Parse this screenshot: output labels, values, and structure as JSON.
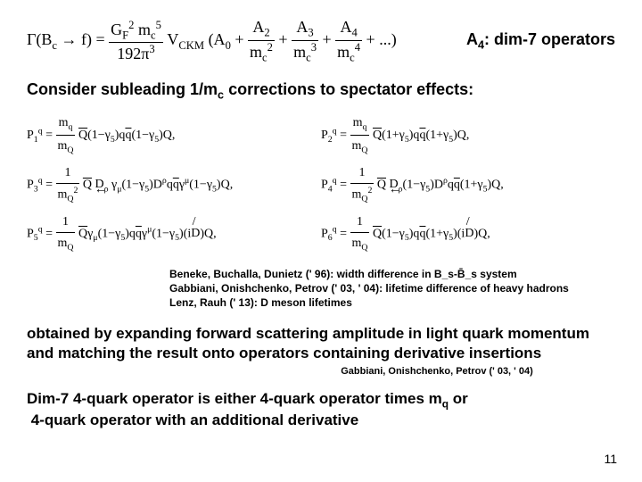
{
  "mainEquation": {
    "lhs": "Γ(B_c → f) =",
    "prefactorNum": "G_F² m_c⁵",
    "prefactorDen": "192π³",
    "ckm": "V_CKM",
    "series": "(A₀ + A₂/m_c² + A₃/m_c³ + A₄/m_c⁴ + ...)"
  },
  "headingRight": "A₄: dim-7 operators",
  "subHeading": "Consider subleading 1/m_c corrections to spectator effects:",
  "operators": {
    "row1": {
      "left": "P₁^q = (m_q/m_Q) Q̄(1−γ₅)q q̄(1−γ₅)Q,",
      "right": "P₂^q = (m_q/m_Q) Q̄(1+γ₅)q q̄(1+γ₅)Q,"
    },
    "row2": {
      "left": "P₃^q = (1/m_Q²) Q̄ D_ρ γ_μ(1−γ₅)D^ρ q q̄ γ^μ(1−γ₅)Q,",
      "right": "P₄^q = (1/m_Q²) Q̄ D_ρ(1−γ₅)D^ρ q q̄(1+γ₅)Q,"
    },
    "row3": {
      "left": "P₅^q = (1/m_Q) Q̄ γ_μ(1−γ₅)q q̄ γ^μ(1−γ₅)(iD̸)Q,",
      "right": "P₆^q = (1/m_Q) Q̄(1−γ₅)q q̄(1+γ₅)(iD̸)Q,"
    }
  },
  "refs": {
    "line1": "Beneke, Buchalla, Dunietz (' 96): width difference in B_s-B̄_s system",
    "line2": "Gabbiani, Onishchenko, Petrov (' 03, ' 04): lifetime difference of heavy hadrons",
    "line3": "Lenz, Rauh (' 13): D meson lifetimes"
  },
  "bodyText": "obtained by expanding forward scattering amplitude in light quark momentum and matching the result onto operators containing derivative insertions",
  "smallRef": "Gabbiani, Onishchenko, Petrov (' 03, ' 04)",
  "bottomText": "Dim-7 4-quark operator is either 4-quark operator times m_q or 4-quark operator with an additional derivative",
  "pageNumber": "11",
  "colors": {
    "bg": "#ffffff",
    "text": "#000000"
  }
}
